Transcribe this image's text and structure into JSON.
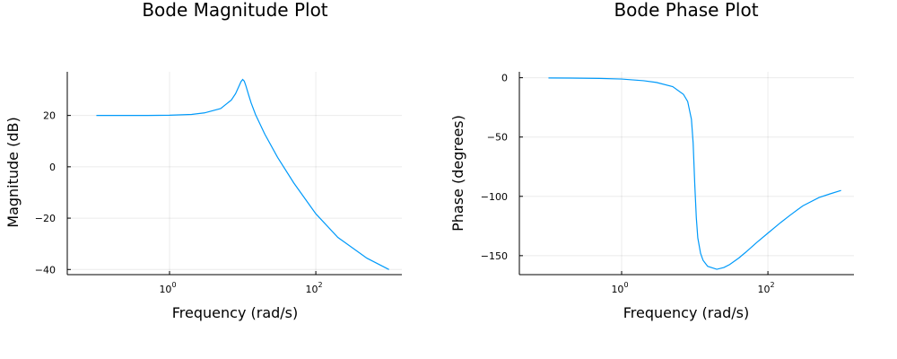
{
  "chart_data": [
    {
      "type": "line",
      "title": "Bode Magnitude Plot",
      "xlabel": "Frequency (rad/s)",
      "ylabel": "Magnitude (dB)",
      "x_scale": "log10",
      "x_range": [
        0.04,
        1500
      ],
      "xlim": [
        0.1,
        1000
      ],
      "ylim": [
        -40,
        34
      ],
      "y_range": [
        -42,
        37
      ],
      "x_ticks": [
        {
          "base": "10",
          "exp": "0",
          "value": 1
        },
        {
          "base": "10",
          "exp": "2",
          "value": 100
        }
      ],
      "y_ticks": [
        20,
        0,
        -20,
        -40
      ],
      "y_tick_labels": [
        "20",
        "0",
        "−20",
        "−40"
      ],
      "grid": true,
      "legend": "none",
      "color": "#009AFA",
      "series": [
        {
          "x": [
            0.1,
            0.2,
            0.5,
            1,
            2,
            3,
            5,
            7,
            8,
            9,
            9.5,
            10,
            10.5,
            11,
            12,
            13,
            15,
            20,
            30,
            50,
            100,
            200,
            500,
            1000
          ],
          "y": [
            20.0,
            20.0,
            20.0,
            20.1,
            20.4,
            21.0,
            22.7,
            26.0,
            28.5,
            31.7,
            33.2,
            34.0,
            33.4,
            31.8,
            28.2,
            25.0,
            20.3,
            12.8,
            3.7,
            -6.3,
            -18.3,
            -27.5,
            -35.6,
            -40.0
          ]
        }
      ]
    },
    {
      "type": "line",
      "title": "Bode Phase Plot",
      "xlabel": "Frequency (rad/s)",
      "ylabel": "Phase (degrees)",
      "x_scale": "log10",
      "x_range": [
        0.04,
        1500
      ],
      "xlim": [
        0.1,
        1000
      ],
      "ylim": [
        -162,
        0
      ],
      "y_range": [
        -166,
        5
      ],
      "x_ticks": [
        {
          "base": "10",
          "exp": "0",
          "value": 1
        },
        {
          "base": "10",
          "exp": "2",
          "value": 100
        }
      ],
      "y_ticks": [
        0,
        -50,
        -100,
        -150
      ],
      "y_tick_labels": [
        "0",
        "−50",
        "−100",
        "−150"
      ],
      "grid": true,
      "legend": "none",
      "color": "#009AFA",
      "series": [
        {
          "x": [
            0.1,
            0.2,
            0.5,
            1,
            2,
            3,
            5,
            7,
            8,
            9,
            9.5,
            10,
            10.5,
            11,
            12,
            13,
            15,
            20,
            25,
            30,
            40,
            50,
            70,
            100,
            150,
            200,
            300,
            500,
            700,
            1000
          ],
          "y": [
            -0.2,
            -0.3,
            -0.6,
            -1.1,
            -2.5,
            -4.0,
            -7.5,
            -14.0,
            -20.0,
            -35.0,
            -55.0,
            -90.0,
            -118.0,
            -135.0,
            -148.0,
            -154.0,
            -159.0,
            -161.5,
            -160.0,
            -157.5,
            -152.0,
            -147.0,
            -139.0,
            -131.0,
            -122.0,
            -116.0,
            -108.0,
            -101.0,
            -98.0,
            -95.0
          ]
        }
      ]
    }
  ]
}
